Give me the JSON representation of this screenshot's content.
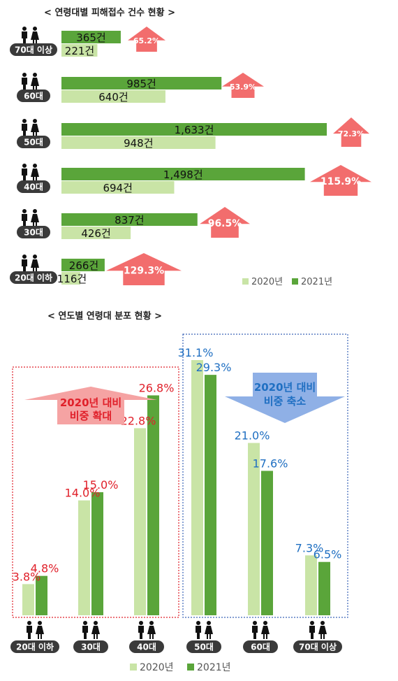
{
  "colors": {
    "c2020": "#c9e4a6",
    "c2021": "#5aa53a",
    "arrow_up": "#f26d6d",
    "arrow_down": "#8fb0e6",
    "red_text": "#e0202a",
    "blue_text": "#1f6fc2",
    "badge": "#3a3a3a"
  },
  "chart_data": [
    {
      "type": "bar",
      "title": "< 연령대별 피해접수 건수 현황 >",
      "categories": [
        "70대 이상",
        "60대",
        "50대",
        "40대",
        "30대",
        "20대 이하"
      ],
      "series": [
        {
          "name": "2020년",
          "values": [
            221,
            640,
            948,
            694,
            426,
            116
          ],
          "labels": [
            "221건",
            "640건",
            "948건",
            "694건",
            "426건",
            "116건"
          ]
        },
        {
          "name": "2021년",
          "values": [
            365,
            985,
            1633,
            1498,
            837,
            266
          ],
          "labels": [
            "365건",
            "985건",
            "1,633건",
            "1,498건",
            "837건",
            "266건"
          ]
        }
      ],
      "growth": [
        "65.2%",
        "53.9%",
        "72.3%",
        "115.9%",
        "96.5%",
        "129.3%"
      ],
      "legend": [
        "2020년",
        "2021년"
      ],
      "orientation": "horizontal",
      "grid": false,
      "legend_position": "bottom-right"
    },
    {
      "type": "bar",
      "title": "< 연도별 연령대 분포 현황 >",
      "categories": [
        "20대 이하",
        "30대",
        "40대",
        "50대",
        "60대",
        "70대 이상"
      ],
      "series": [
        {
          "name": "2020년",
          "values": [
            3.8,
            14.0,
            22.8,
            31.1,
            21.0,
            7.3
          ],
          "labels": [
            "3.8%",
            "14.0%",
            "22.8%",
            "31.1%",
            "21.0%",
            "7.3%"
          ]
        },
        {
          "name": "2021년",
          "values": [
            4.8,
            15.0,
            26.8,
            29.3,
            17.6,
            6.5
          ],
          "labels": [
            "4.8%",
            "15.0%",
            "26.8%",
            "29.3%",
            "17.6%",
            "6.5%"
          ]
        }
      ],
      "annotations": [
        {
          "lines": [
            "2020년 대비",
            "비중 확대"
          ],
          "direction": "up"
        },
        {
          "lines": [
            "2020년 대비",
            "비중 축소"
          ],
          "direction": "down"
        }
      ],
      "legend": [
        "2020년",
        "2021년"
      ],
      "orientation": "vertical",
      "grid": false,
      "legend_position": "bottom-center"
    }
  ]
}
